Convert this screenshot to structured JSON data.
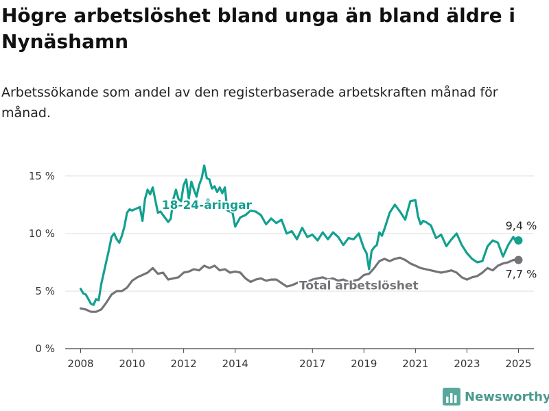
{
  "title": "Högre arbetslöshet bland unga än bland äldre i Nynäshamn",
  "subtitle": "Arbetssökande som andel av den registerbaserade arbetskraften månad för månad.",
  "brand": {
    "name": "Newsworthy",
    "icon": "newsworthy-logo-icon"
  },
  "chart_data": {
    "type": "line",
    "ylim": [
      0,
      16
    ],
    "xlim": [
      2007.4,
      2025.6
    ],
    "yticks": [
      0,
      5,
      10,
      15
    ],
    "ytick_labels": [
      "0 %",
      "5 %",
      "10 %",
      "15 %"
    ],
    "xticks": [
      2008,
      2010,
      2012,
      2014,
      2017,
      2019,
      2021,
      2023,
      2025
    ],
    "xtick_labels": [
      "2008",
      "2010",
      "2012",
      "2014",
      "2017",
      "2019",
      "2021",
      "2023",
      "2025"
    ],
    "grid": true,
    "series": [
      {
        "name": "18-24-åringar",
        "color": "#12a08f",
        "end_label": "9,4 %",
        "x": [
          2008.0,
          2008.1,
          2008.2,
          2008.3,
          2008.4,
          2008.5,
          2008.6,
          2008.7,
          2008.8,
          2008.9,
          2009.0,
          2009.1,
          2009.2,
          2009.3,
          2009.4,
          2009.5,
          2009.6,
          2009.7,
          2009.8,
          2009.9,
          2010.0,
          2010.1,
          2010.2,
          2010.3,
          2010.4,
          2010.5,
          2010.6,
          2010.7,
          2010.8,
          2010.9,
          2011.0,
          2011.1,
          2011.2,
          2011.3,
          2011.4,
          2011.5,
          2011.6,
          2011.7,
          2011.8,
          2011.9,
          2012.0,
          2012.1,
          2012.2,
          2012.3,
          2012.4,
          2012.5,
          2012.6,
          2012.7,
          2012.8,
          2012.9,
          2013.0,
          2013.1,
          2013.2,
          2013.3,
          2013.4,
          2013.5,
          2013.6,
          2013.7,
          2013.8,
          2013.9,
          2014.0,
          2014.2,
          2014.4,
          2014.6,
          2014.8,
          2015.0,
          2015.2,
          2015.4,
          2015.6,
          2015.8,
          2016.0,
          2016.2,
          2016.4,
          2016.6,
          2016.8,
          2017.0,
          2017.2,
          2017.4,
          2017.6,
          2017.8,
          2018.0,
          2018.2,
          2018.4,
          2018.6,
          2018.8,
          2019.0,
          2019.1,
          2019.2,
          2019.3,
          2019.4,
          2019.5,
          2019.6,
          2019.7,
          2019.8,
          2020.0,
          2020.2,
          2020.4,
          2020.6,
          2020.8,
          2021.0,
          2021.1,
          2021.2,
          2021.3,
          2021.4,
          2021.6,
          2021.8,
          2022.0,
          2022.2,
          2022.4,
          2022.6,
          2022.8,
          2023.0,
          2023.2,
          2023.4,
          2023.6,
          2023.8,
          2024.0,
          2024.2,
          2024.4,
          2024.6,
          2024.8,
          2024.9,
          2025.0
        ],
        "y": [
          5.2,
          4.8,
          4.7,
          4.3,
          3.9,
          3.8,
          4.3,
          4.2,
          5.6,
          6.6,
          7.6,
          8.6,
          9.7,
          10.0,
          9.5,
          9.2,
          9.8,
          10.6,
          11.8,
          12.1,
          12.0,
          12.1,
          12.2,
          12.3,
          11.1,
          13.0,
          13.8,
          13.4,
          14.0,
          12.9,
          11.8,
          11.9,
          11.6,
          11.3,
          11.0,
          11.3,
          13.0,
          13.8,
          13.0,
          12.8,
          14.2,
          14.7,
          13.0,
          14.5,
          13.8,
          13.2,
          14.2,
          14.8,
          15.9,
          14.8,
          14.7,
          13.9,
          14.1,
          13.6,
          14.0,
          13.5,
          14.0,
          12.0,
          11.9,
          11.8,
          10.6,
          11.4,
          11.6,
          12.0,
          11.9,
          11.6,
          10.8,
          11.3,
          10.9,
          11.2,
          10.0,
          10.2,
          9.5,
          10.5,
          9.7,
          9.9,
          9.4,
          10.1,
          9.5,
          10.1,
          9.7,
          9.0,
          9.6,
          9.5,
          10.0,
          8.7,
          8.3,
          6.9,
          8.5,
          8.8,
          9.0,
          10.1,
          9.8,
          10.4,
          11.8,
          12.5,
          11.9,
          11.2,
          12.8,
          12.9,
          11.5,
          10.8,
          11.1,
          11.0,
          10.7,
          9.6,
          9.9,
          8.9,
          9.5,
          10.0,
          9.0,
          8.3,
          7.8,
          7.5,
          7.6,
          8.9,
          9.4,
          9.2,
          8.0,
          9.0,
          9.7,
          9.3,
          9.4
        ]
      },
      {
        "name": "Total arbetslöshet",
        "color": "#737378",
        "end_label": "7,7 %",
        "x": [
          2008.0,
          2008.2,
          2008.4,
          2008.6,
          2008.8,
          2009.0,
          2009.2,
          2009.4,
          2009.6,
          2009.8,
          2010.0,
          2010.2,
          2010.4,
          2010.6,
          2010.8,
          2011.0,
          2011.2,
          2011.4,
          2011.6,
          2011.8,
          2012.0,
          2012.2,
          2012.4,
          2012.6,
          2012.8,
          2013.0,
          2013.2,
          2013.4,
          2013.6,
          2013.8,
          2014.0,
          2014.2,
          2014.4,
          2014.6,
          2014.8,
          2015.0,
          2015.2,
          2015.4,
          2015.6,
          2015.8,
          2016.0,
          2016.2,
          2016.4,
          2016.6,
          2016.8,
          2017.0,
          2017.2,
          2017.4,
          2017.6,
          2017.8,
          2018.0,
          2018.2,
          2018.4,
          2018.6,
          2018.8,
          2019.0,
          2019.2,
          2019.4,
          2019.6,
          2019.8,
          2020.0,
          2020.2,
          2020.4,
          2020.6,
          2020.8,
          2021.0,
          2021.2,
          2021.4,
          2021.6,
          2021.8,
          2022.0,
          2022.2,
          2022.4,
          2022.6,
          2022.8,
          2023.0,
          2023.2,
          2023.4,
          2023.6,
          2023.8,
          2024.0,
          2024.2,
          2024.4,
          2024.6,
          2024.8,
          2025.0
        ],
        "y": [
          3.5,
          3.4,
          3.2,
          3.2,
          3.4,
          4.0,
          4.7,
          5.0,
          5.0,
          5.3,
          5.9,
          6.2,
          6.4,
          6.6,
          7.0,
          6.5,
          6.6,
          6.0,
          6.1,
          6.2,
          6.6,
          6.7,
          6.9,
          6.8,
          7.2,
          7.0,
          7.2,
          6.8,
          6.9,
          6.6,
          6.7,
          6.6,
          6.1,
          5.8,
          6.0,
          6.1,
          5.9,
          6.0,
          6.0,
          5.7,
          5.4,
          5.5,
          5.7,
          5.9,
          5.8,
          6.0,
          6.1,
          6.2,
          6.0,
          6.1,
          5.9,
          6.0,
          5.8,
          5.9,
          6.0,
          6.4,
          6.5,
          7.0,
          7.6,
          7.8,
          7.6,
          7.8,
          7.9,
          7.7,
          7.4,
          7.2,
          7.0,
          6.9,
          6.8,
          6.7,
          6.6,
          6.7,
          6.8,
          6.6,
          6.2,
          6.0,
          6.2,
          6.3,
          6.6,
          7.0,
          6.8,
          7.2,
          7.4,
          7.5,
          7.7,
          7.7
        ]
      }
    ]
  }
}
